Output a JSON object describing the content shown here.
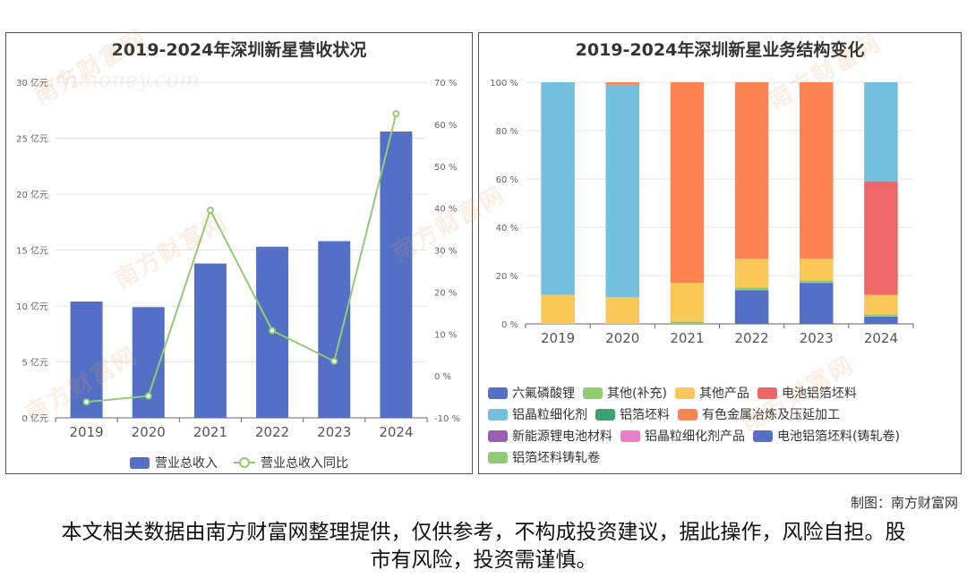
{
  "left_chart": {
    "title": "2019-2024年深圳新星营收状况",
    "legend": [
      "营业总收入",
      "营业总收入同比"
    ]
  },
  "right_chart": {
    "title": "2019-2024年深圳新星业务结构变化"
  },
  "watermark": {
    "brand": "南方财富网",
    "url": "southmoney.com"
  },
  "credit": "制图：南方财富网",
  "disclaimer": "本文相关数据由南方财富网整理提供，仅供参考，不构成投资建议，据此操作，风险自担。股市有风险，投资需谨慎。",
  "colors": {
    "bar": "#5470c6",
    "line": "#91cc75"
  },
  "chart_data": [
    {
      "type": "bar",
      "title": "2019-2024年深圳新星营收状况",
      "categories": [
        "2019",
        "2020",
        "2021",
        "2022",
        "2023",
        "2024"
      ],
      "series": [
        {
          "name": "营业总收入",
          "type": "bar",
          "axis": "left",
          "values": [
            10.4,
            9.9,
            13.8,
            15.3,
            15.8,
            25.6
          ]
        },
        {
          "name": "营业总收入同比",
          "type": "line",
          "axis": "right",
          "values": [
            -6.2,
            -4.8,
            39.5,
            10.8,
            3.5,
            62.5
          ]
        }
      ],
      "y_left": {
        "min": 0,
        "max": 30,
        "step": 5,
        "unit": " 亿元"
      },
      "y_right": {
        "min": -10,
        "max": 70,
        "step": 10,
        "unit": " %"
      },
      "legend_position": "bottom-center"
    },
    {
      "type": "bar",
      "stacked": true,
      "title": "2019-2024年深圳新星业务结构变化",
      "categories": [
        "2019",
        "2020",
        "2021",
        "2022",
        "2023",
        "2024"
      ],
      "y_axis": {
        "min": 0,
        "max": 100,
        "step": 20,
        "unit": " %"
      },
      "legend_position": "bottom",
      "series": [
        {
          "name": "六氟磷酸锂",
          "color": "#5470c6",
          "values": [
            0,
            0,
            0,
            14,
            17,
            3
          ]
        },
        {
          "name": "其他(补充)",
          "color": "#91cc75",
          "values": [
            0,
            0,
            1,
            1,
            1,
            1
          ]
        },
        {
          "name": "其他产品",
          "color": "#fac858",
          "values": [
            12,
            11,
            16,
            12,
            9,
            8
          ]
        },
        {
          "name": "电池铝箔坯料",
          "color": "#ee6666",
          "values": [
            0,
            0,
            0,
            0,
            0,
            47
          ]
        },
        {
          "name": "铝晶粒细化剂",
          "color": "#73c0de",
          "values": [
            88,
            88,
            0,
            0,
            0,
            41
          ]
        },
        {
          "name": "铝箔坯料",
          "color": "#3ba272",
          "values": [
            0,
            0,
            0,
            0,
            0,
            0
          ]
        },
        {
          "name": "有色金属冶炼及压延加工",
          "color": "#fc8452",
          "values": [
            0,
            1,
            83,
            73,
            73,
            0
          ]
        },
        {
          "name": "新能源锂电池材料",
          "color": "#9a60b4",
          "values": [
            0,
            0,
            0,
            0,
            0,
            0
          ]
        },
        {
          "name": "铝晶粒细化剂产品",
          "color": "#ea7ccc",
          "values": [
            0,
            0,
            0,
            0,
            0,
            0
          ]
        },
        {
          "name": "电池铝箔坯料(铸轧卷)",
          "color": "#5470c6",
          "values": [
            0,
            0,
            0,
            0,
            0,
            0
          ]
        },
        {
          "name": "铝箔坯料铸轧卷",
          "color": "#91cc75",
          "values": [
            0,
            0,
            0,
            0,
            0,
            0
          ]
        }
      ]
    }
  ]
}
